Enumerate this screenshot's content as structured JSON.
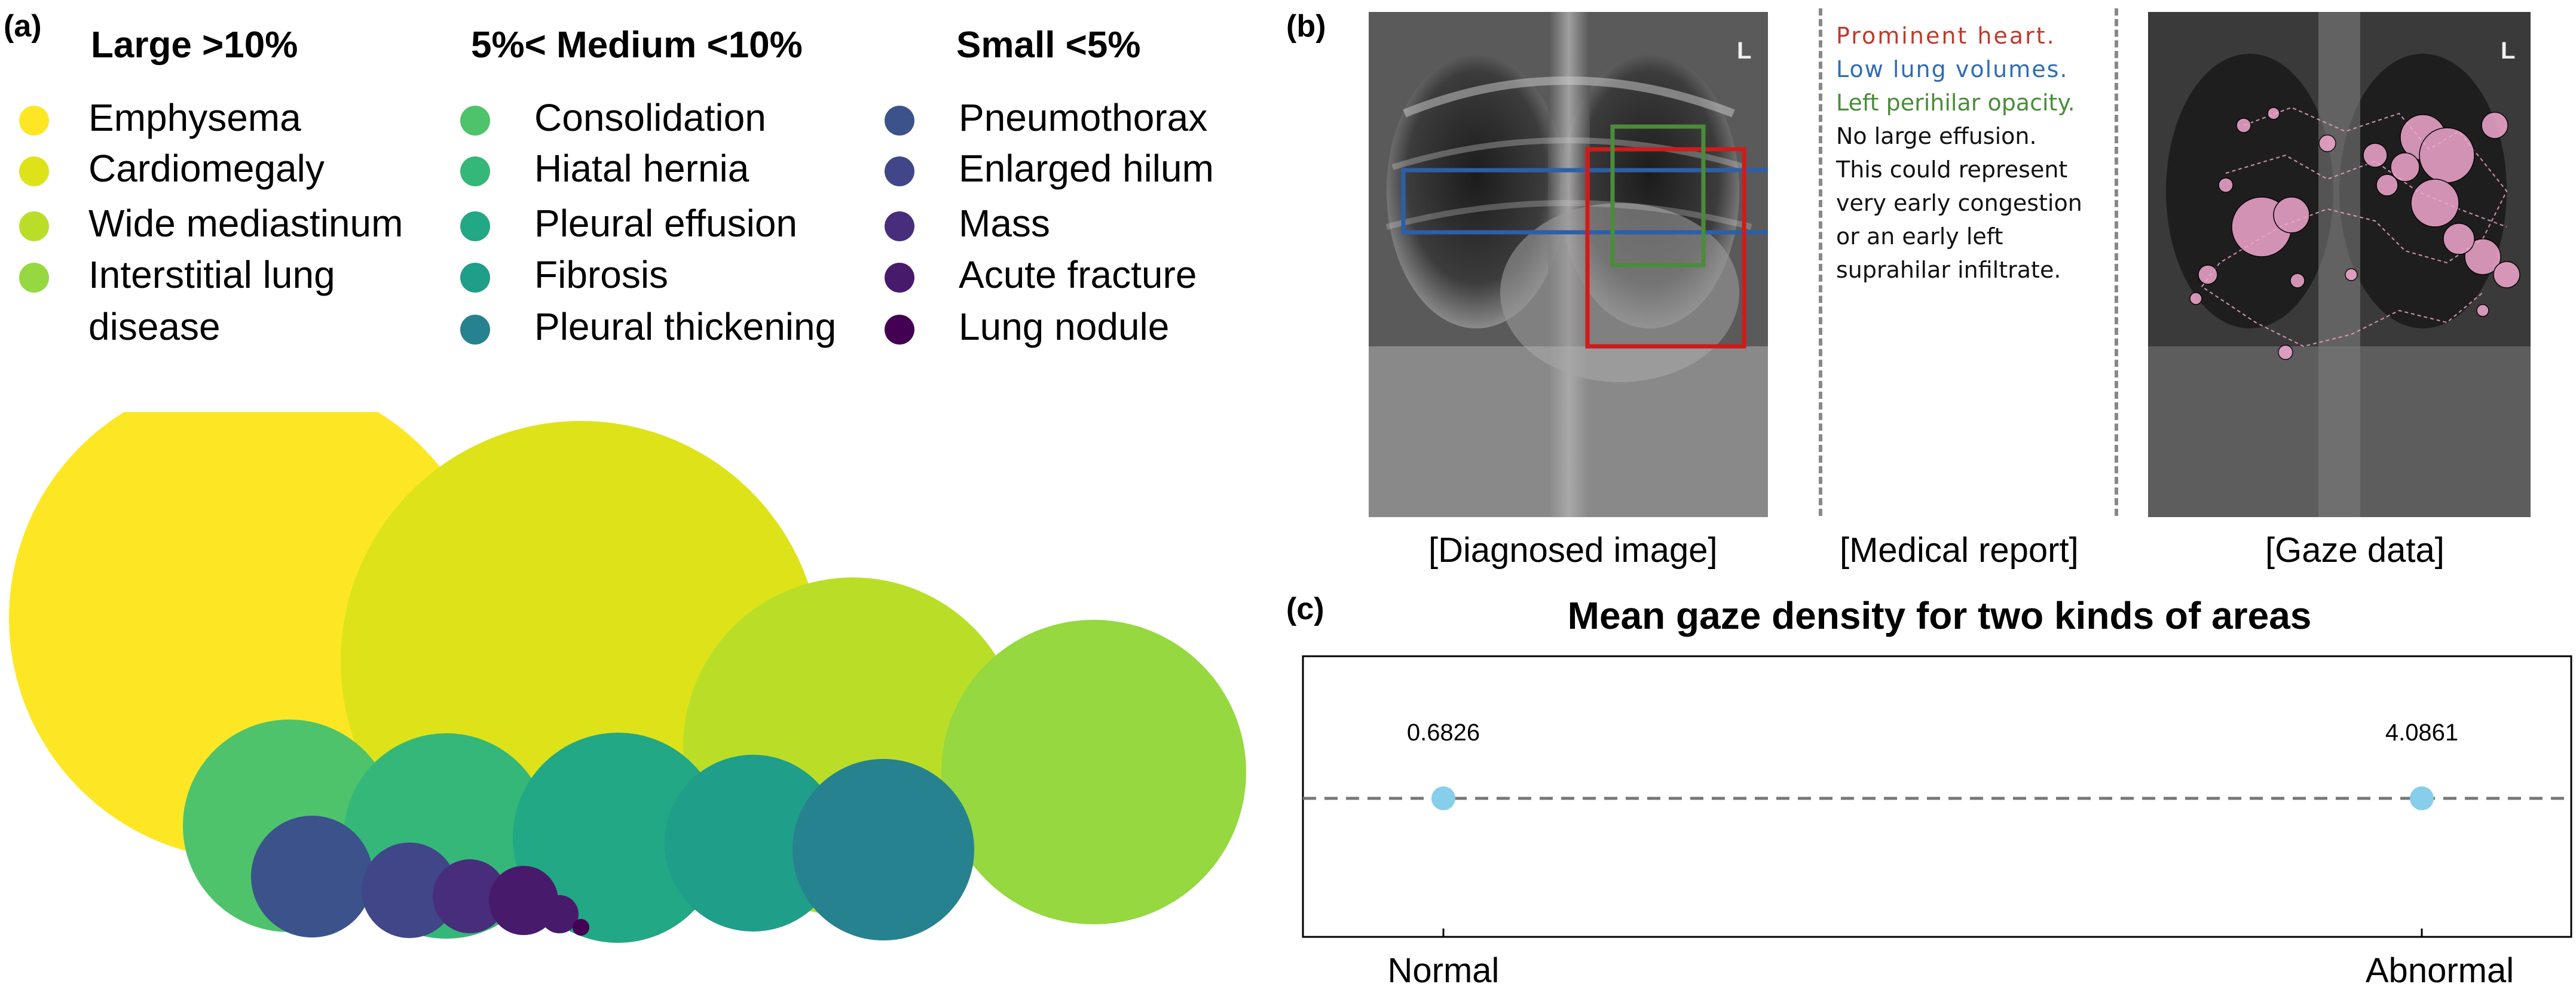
{
  "panel_a": {
    "tag": "(a)",
    "groups": [
      {
        "header": "Large >10%",
        "items": [
          {
            "label": "Emphysema",
            "color": "#fde725"
          },
          {
            "label": "Cardiomegaly",
            "color": "#dde318"
          },
          {
            "label": "Wide mediastinum",
            "color": "#bade28"
          },
          {
            "label": "Interstitial lung",
            "color": "#95d840"
          },
          {
            "label": "disease",
            "color": null
          }
        ]
      },
      {
        "header": "5%< Medium <10%",
        "items": [
          {
            "label": "Consolidation",
            "color": "#4ec36b"
          },
          {
            "label": "Hiatal hernia",
            "color": "#35b779"
          },
          {
            "label": "Pleural effusion",
            "color": "#22a884"
          },
          {
            "label": "Fibrosis",
            "color": "#1f9e89"
          },
          {
            "label": "Pleural thickening",
            "color": "#26828e"
          }
        ]
      },
      {
        "header": "Small <5%",
        "items": [
          {
            "label": "Pneumothorax",
            "color": "#3b528b"
          },
          {
            "label": "Enlarged hilum",
            "color": "#404688"
          },
          {
            "label": "Mass",
            "color": "#472d7b"
          },
          {
            "label": "Acute fracture",
            "color": "#481a6c"
          },
          {
            "label": "Lung nodule",
            "color": "#440154"
          }
        ]
      }
    ]
  },
  "panel_b": {
    "tag": "(b)",
    "captions": {
      "image": "[Diagnosed image]",
      "report": "[Medical report]",
      "gaze": "[Gaze data]"
    },
    "xray_marker": "L",
    "report_lines": [
      {
        "text": "Prominent heart.",
        "color": "#c0392b"
      },
      {
        "text": "Low lung volumes.",
        "color": "#2e6db4"
      },
      {
        "text": "Left perihilar opacity.",
        "color": "#4a8c3a"
      },
      {
        "text": "No large effusion.",
        "color": "#111111"
      },
      {
        "text": "This could represent",
        "color": "#111111"
      },
      {
        "text": "very early congestion",
        "color": "#111111"
      },
      {
        "text": "or an early left",
        "color": "#111111"
      },
      {
        "text": "suprahilar infiltrate.",
        "color": "#111111"
      }
    ],
    "box_colors": {
      "red": "#d11a1a",
      "blue": "#2c5fa8",
      "green": "#4a8c3a"
    },
    "gaze_color": "#f2a7cf"
  },
  "panel_c": {
    "tag": "(c)",
    "chart_data": {
      "type": "scatter",
      "title": "Mean gaze density for two kinds of areas",
      "categories": [
        "Normal",
        "Abnormal"
      ],
      "values": [
        0.6826,
        4.0861
      ],
      "value_labels": [
        "0.6826",
        "4.0861"
      ],
      "xlabel": "",
      "ylabel": "",
      "marker_color": "#87ceeb",
      "reference_line": "dashed horizontal",
      "grid": false
    }
  }
}
